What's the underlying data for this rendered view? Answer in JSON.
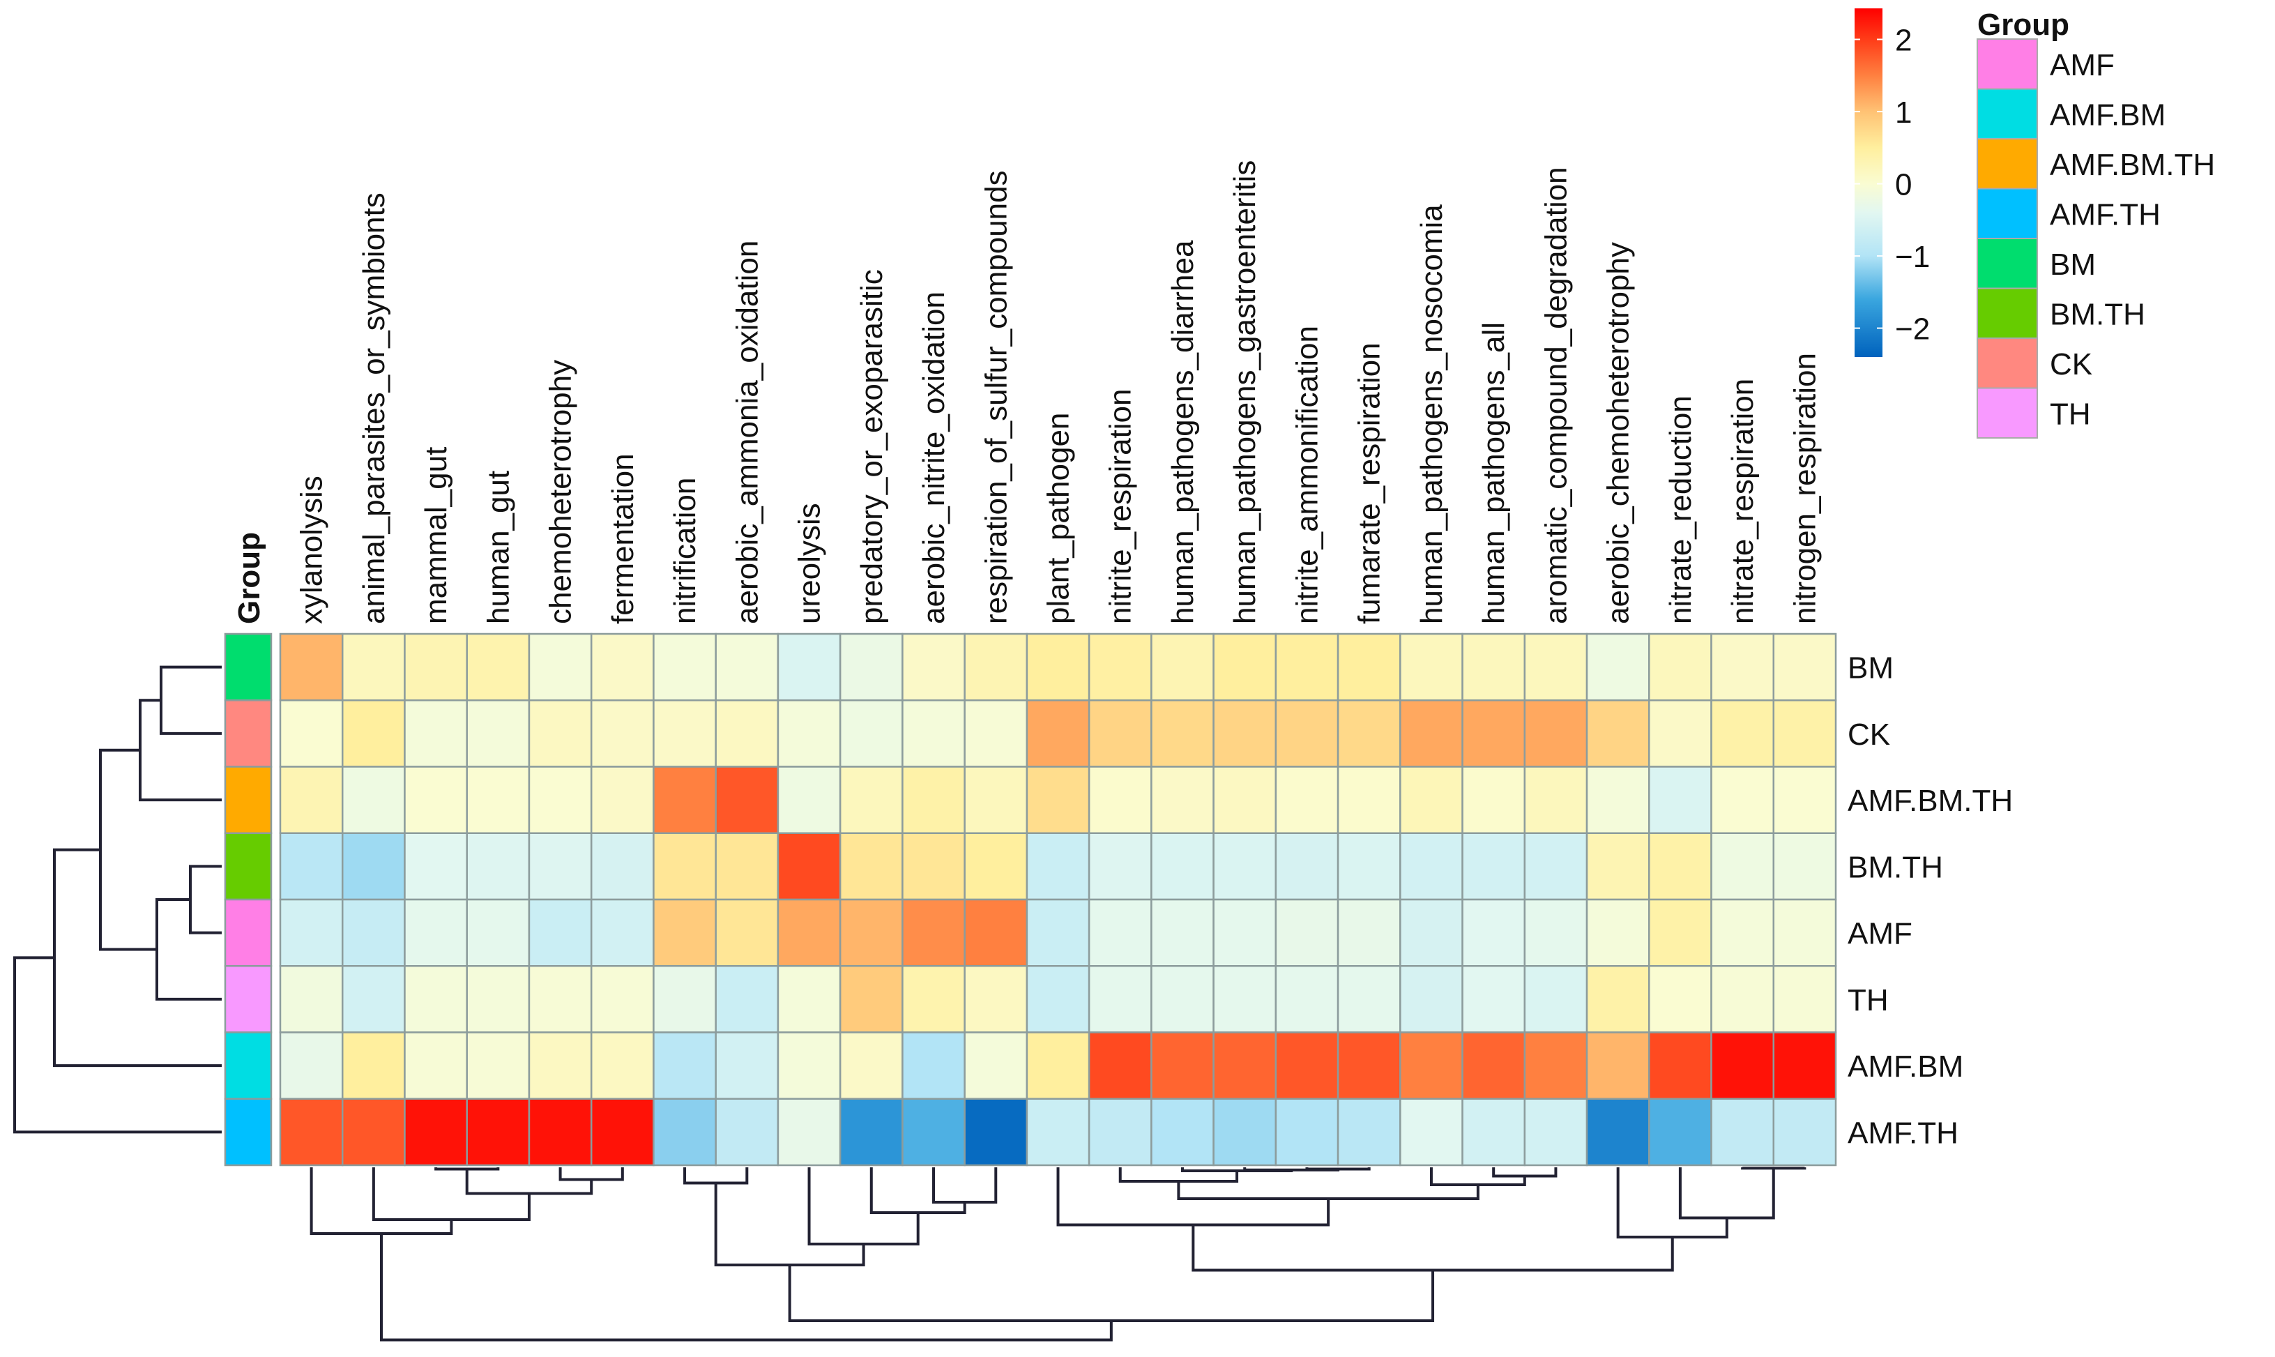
{
  "chart_data": {
    "type": "heatmap",
    "title": "",
    "columns": [
      "xylanolysis",
      "animal_parasites_or_symbionts",
      "mammal_gut",
      "human_gut",
      "chemoheterotrophy",
      "fermentation",
      "nitrification",
      "aerobic_ammonia_oxidation",
      "ureolysis",
      "predatory_or_exoparasitic",
      "aerobic_nitrite_oxidation",
      "respiration_of_sulfur_compounds",
      "plant_pathogen",
      "nitrite_respiration",
      "human_pathogens_diarrhea",
      "human_pathogens_gastroenteritis",
      "nitrite_ammonification",
      "fumarate_respiration",
      "human_pathogens_nosocomia",
      "human_pathogens_all",
      "aromatic_compound_degradation",
      "aerobic_chemoheterotrophy",
      "nitrate_reduction",
      "nitrate_respiration",
      "nitrogen_respiration"
    ],
    "rows": [
      "BM",
      "CK",
      "AMF.BM.TH",
      "BM.TH",
      "AMF",
      "TH",
      "AMF.BM",
      "AMF.TH"
    ],
    "values": [
      [
        1.1,
        0.2,
        0.3,
        0.35,
        -0.1,
        0.1,
        -0.1,
        -0.1,
        -0.5,
        -0.25,
        0.1,
        0.3,
        0.5,
        0.45,
        0.3,
        0.5,
        0.5,
        0.5,
        0.2,
        0.2,
        0.2,
        -0.2,
        0.2,
        0.1,
        0.1
      ],
      [
        0.0,
        0.5,
        -0.1,
        -0.1,
        0.15,
        0.1,
        0.1,
        0.15,
        -0.1,
        -0.2,
        -0.1,
        -0.05,
        1.2,
        0.8,
        0.75,
        0.8,
        0.8,
        0.75,
        1.2,
        1.2,
        1.2,
        0.8,
        0.1,
        0.4,
        0.4
      ],
      [
        0.3,
        -0.2,
        0.0,
        0.0,
        0.0,
        0.1,
        1.5,
        1.8,
        -0.2,
        0.2,
        0.4,
        0.2,
        0.7,
        0.05,
        0.1,
        0.15,
        0.05,
        0.05,
        0.25,
        0.05,
        0.2,
        -0.1,
        -0.5,
        0.0,
        0.0
      ],
      [
        -0.9,
        -1.1,
        -0.4,
        -0.45,
        -0.45,
        -0.55,
        0.6,
        0.6,
        1.9,
        0.6,
        0.6,
        0.5,
        -0.7,
        -0.45,
        -0.5,
        -0.5,
        -0.55,
        -0.5,
        -0.6,
        -0.6,
        -0.6,
        0.3,
        0.4,
        -0.2,
        -0.2
      ],
      [
        -0.6,
        -0.75,
        -0.35,
        -0.35,
        -0.7,
        -0.6,
        0.9,
        0.6,
        1.2,
        1.1,
        1.4,
        1.5,
        -0.7,
        -0.35,
        -0.35,
        -0.35,
        -0.3,
        -0.3,
        -0.55,
        -0.4,
        -0.35,
        -0.1,
        0.4,
        -0.1,
        -0.1
      ],
      [
        -0.15,
        -0.6,
        -0.1,
        -0.1,
        -0.05,
        -0.05,
        -0.3,
        -0.7,
        -0.1,
        0.9,
        0.35,
        0.15,
        -0.7,
        -0.35,
        -0.35,
        -0.35,
        -0.35,
        -0.35,
        -0.55,
        -0.4,
        -0.5,
        0.4,
        0.0,
        -0.05,
        -0.05
      ],
      [
        -0.3,
        0.5,
        -0.05,
        -0.05,
        0.15,
        0.15,
        -0.9,
        -0.6,
        -0.1,
        0.1,
        -1.0,
        -0.1,
        0.5,
        1.9,
        1.7,
        1.7,
        1.8,
        1.8,
        1.5,
        1.7,
        1.5,
        1.1,
        1.9,
        2.3,
        2.3
      ],
      [
        1.8,
        1.8,
        2.3,
        2.3,
        2.3,
        2.3,
        -1.2,
        -0.8,
        -0.3,
        -1.8,
        -1.5,
        -2.3,
        -0.7,
        -0.8,
        -1.0,
        -1.1,
        -1.0,
        -0.9,
        -0.4,
        -0.6,
        -0.6,
        -2.0,
        -1.5,
        -0.8,
        -0.8
      ]
    ],
    "row_groups": [
      "BM",
      "CK",
      "AMF.BM.TH",
      "BM.TH",
      "AMF",
      "TH",
      "AMF.BM",
      "AMF.TH"
    ],
    "row_dendrogram": [
      [
        0,
        1,
        0.29
      ],
      [
        2,
        "m0",
        0.39
      ],
      [
        3,
        4,
        0.15
      ],
      [
        "m2",
        5,
        0.31
      ],
      [
        "m1",
        "m3",
        0.58
      ],
      [
        "m4",
        6,
        0.8
      ],
      [
        "m5",
        7,
        0.99
      ]
    ],
    "col_dendrogram": [
      [
        4,
        5,
        0.07
      ],
      [
        2,
        3,
        0.01
      ],
      [
        "m1",
        "m0",
        0.15
      ],
      [
        1,
        "m2",
        0.3
      ],
      [
        0,
        "m3",
        0.38
      ],
      [
        6,
        7,
        0.09
      ],
      [
        10,
        11,
        0.2
      ],
      [
        9,
        "m6",
        0.26
      ],
      [
        8,
        "m7",
        0.44
      ],
      [
        "m5",
        "m8",
        0.56
      ],
      [
        16,
        17,
        0.01
      ],
      [
        15,
        "m10",
        0.015
      ],
      [
        14,
        "m11",
        0.02
      ],
      [
        13,
        "m12",
        0.08
      ],
      [
        19,
        20,
        0.05
      ],
      [
        18,
        "m14",
        0.1
      ],
      [
        "m13",
        "m15",
        0.18
      ],
      [
        12,
        "m16",
        0.33
      ],
      [
        23,
        24,
        0.005
      ],
      [
        22,
        "m18",
        0.29
      ],
      [
        21,
        "m19",
        0.4
      ],
      [
        "m17",
        "m20",
        0.59
      ],
      [
        "m9",
        "m21",
        0.88
      ],
      [
        "m4",
        "m22",
        0.99
      ]
    ],
    "colorbar": {
      "range": [
        -2.4,
        2.43
      ],
      "ticks": [
        2,
        1,
        0,
        -1,
        -2
      ],
      "tick_labels": [
        "2",
        "1",
        "0",
        "−1",
        "−2"
      ],
      "stops": [
        [
          -2.4,
          "#0062bd"
        ],
        [
          -1.6,
          "#3aa6df"
        ],
        [
          -1.0,
          "#b2e4f6"
        ],
        [
          -0.4,
          "#e2f7f1"
        ],
        [
          0.0,
          "#fafcd2"
        ],
        [
          0.5,
          "#ffef9e"
        ],
        [
          1.0,
          "#ffc274"
        ],
        [
          1.5,
          "#ff8040"
        ],
        [
          2.0,
          "#ff3c18"
        ],
        [
          2.43,
          "#ff0000"
        ]
      ]
    },
    "legend": {
      "title": "Group",
      "placement": "right",
      "items": [
        {
          "label": "AMF",
          "color": "#ff7fe6"
        },
        {
          "label": "AMF.BM",
          "color": "#00dde3"
        },
        {
          "label": "AMF.BM.TH",
          "color": "#ffaa00"
        },
        {
          "label": "AMF.TH",
          "color": "#00c0ff"
        },
        {
          "label": "BM",
          "color": "#00dd6e"
        },
        {
          "label": "BM.TH",
          "color": "#66cc00"
        },
        {
          "label": "CK",
          "color": "#ff8880"
        },
        {
          "label": "TH",
          "color": "#f899ff"
        }
      ]
    },
    "annotation_title": "Group"
  }
}
